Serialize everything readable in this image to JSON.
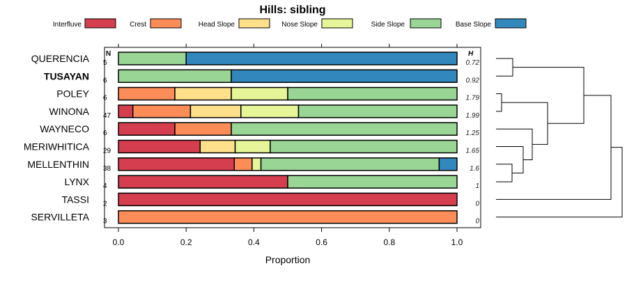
{
  "chart_data": {
    "type": "bar",
    "orientation": "horizontal",
    "stacked": true,
    "title": "Hills: sibling",
    "xlabel": "Proportion",
    "xlim": [
      0,
      1
    ],
    "xticks": [
      "0.0",
      "0.2",
      "0.4",
      "0.6",
      "0.8",
      "1.0"
    ],
    "n_header": "N",
    "h_header": "H",
    "legend_position": "top",
    "series": [
      {
        "name": "Interfluve",
        "color": "#D53E4F"
      },
      {
        "name": "Crest",
        "color": "#FC8D59"
      },
      {
        "name": "Head Slope",
        "color": "#FEE08B"
      },
      {
        "name": "Nose Slope",
        "color": "#E6F598"
      },
      {
        "name": "Side Slope",
        "color": "#99D594"
      },
      {
        "name": "Base Slope",
        "color": "#3288BD"
      }
    ],
    "rows": [
      {
        "label": "QUERENCIA",
        "bold": false,
        "n": "5",
        "h": "0.72",
        "values": [
          0,
          0,
          0,
          0,
          0.2,
          0.8
        ]
      },
      {
        "label": "TUSAYAN",
        "bold": true,
        "n": "6",
        "h": "0.92",
        "values": [
          0,
          0,
          0,
          0,
          0.3333,
          0.6667
        ]
      },
      {
        "label": "POLEY",
        "bold": false,
        "n": "6",
        "h": "1.79",
        "values": [
          0,
          0.1667,
          0.1667,
          0.1667,
          0.5,
          0
        ]
      },
      {
        "label": "WINONA",
        "bold": false,
        "n": "47",
        "h": "1.99",
        "values": [
          0.0426,
          0.1702,
          0.1489,
          0.1702,
          0.4681,
          0
        ]
      },
      {
        "label": "WAYNECO",
        "bold": false,
        "n": "6",
        "h": "1.25",
        "values": [
          0.1667,
          0.1667,
          0,
          0,
          0.6667,
          0
        ]
      },
      {
        "label": "MERIWHITICA",
        "bold": false,
        "n": "29",
        "h": "1.65",
        "values": [
          0.2414,
          0,
          0.1034,
          0.1034,
          0.5517,
          0
        ]
      },
      {
        "label": "MELLENTHIN",
        "bold": false,
        "n": "38",
        "h": "1.6",
        "values": [
          0.3421,
          0.0526,
          0,
          0.0263,
          0.5263,
          0.0526
        ]
      },
      {
        "label": "LYNX",
        "bold": false,
        "n": "4",
        "h": "1",
        "values": [
          0.5,
          0,
          0,
          0,
          0.5,
          0
        ]
      },
      {
        "label": "TASSI",
        "bold": false,
        "n": "2",
        "h": "0",
        "values": [
          1,
          0,
          0,
          0,
          0,
          0
        ]
      },
      {
        "label": "SERVILLETA",
        "bold": false,
        "n": "3",
        "h": "0",
        "values": [
          0,
          1,
          0,
          0,
          0,
          0
        ]
      }
    ],
    "dendrogram": {
      "merges": [
        [
          0,
          1
        ],
        [
          2,
          3
        ],
        [
          6,
          7
        ],
        [
          5,
          "m3"
        ],
        [
          4,
          "m4"
        ],
        [
          "m2",
          "m5"
        ],
        [
          "m1",
          "m6"
        ],
        [
          "m7",
          8
        ],
        [
          "m8",
          9
        ]
      ]
    }
  }
}
